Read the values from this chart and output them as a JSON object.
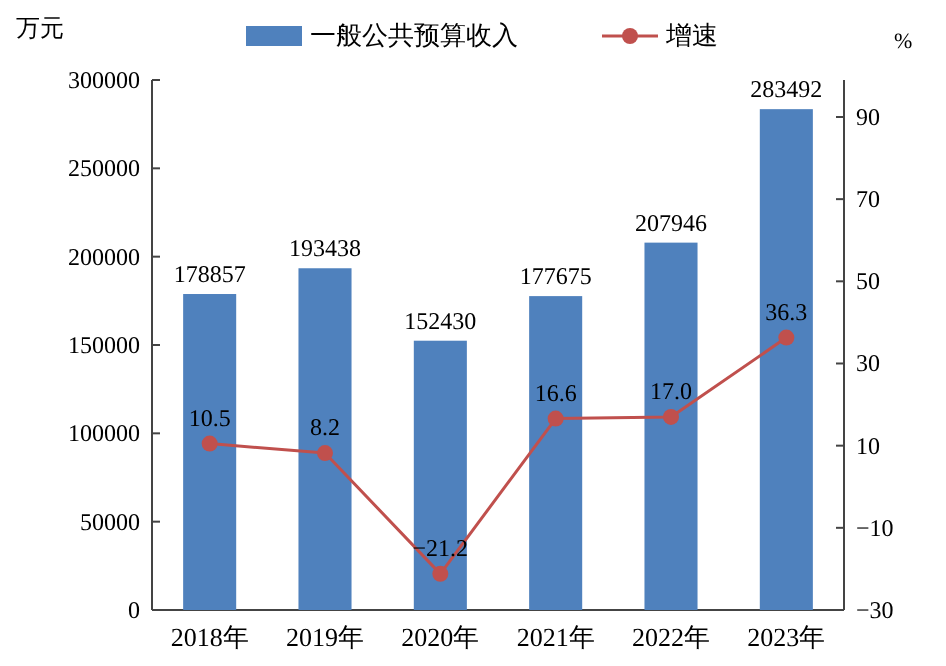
{
  "chart_data": {
    "type": "bar",
    "ylabel": "万元",
    "y2label": "%",
    "categories": [
      "2018年",
      "2019年",
      "2020年",
      "2021年",
      "2022年",
      "2023年"
    ],
    "series": [
      {
        "name": "一般公共预算收入",
        "color": "#4f81bd",
        "values": [
          178857,
          193438,
          152430,
          177675,
          207946,
          283492
        ]
      },
      {
        "name": "增速",
        "type": "line",
        "axis": "y2",
        "color": "#c0504d",
        "marker": "circle",
        "values": [
          10.5,
          8.2,
          -21.2,
          16.6,
          17.0,
          36.3
        ],
        "value_labels": [
          "10.5",
          "8.2",
          "−21.2",
          "16.6",
          "17.0",
          "36.3"
        ]
      }
    ],
    "data_labels": true,
    "ylim": [
      0,
      300000
    ],
    "yticks": [
      0,
      50000,
      100000,
      150000,
      200000,
      250000,
      300000
    ],
    "y2lim": [
      -30,
      99
    ],
    "y2ticks": [
      -30,
      -10,
      10,
      30,
      50,
      70,
      90
    ],
    "legend": "top",
    "grid": false
  }
}
